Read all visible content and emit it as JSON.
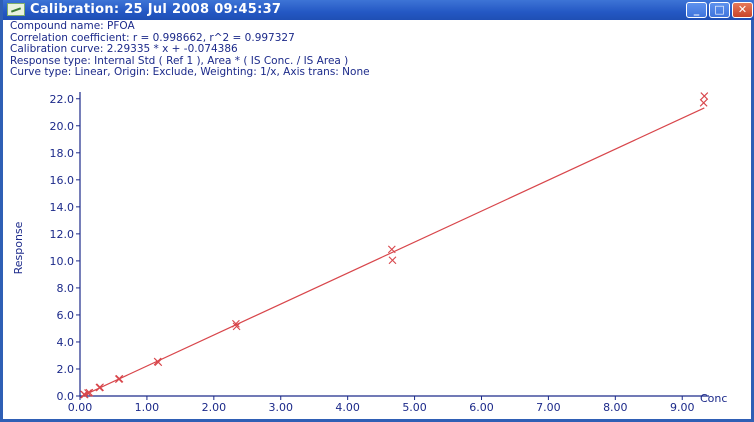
{
  "window": {
    "title": "Calibration: 25 Jul 2008 09:45:37",
    "minimize_symbol": "_",
    "maximize_symbol": "□",
    "close_symbol": "✕"
  },
  "info": {
    "compound": "Compound name: PFOA",
    "correlation": "Correlation coefficient: r = 0.998662, r^2 = 0.997327",
    "curve": "Calibration curve: 2.29335 * x + -0.074386",
    "response": "Response type: Internal Std ( Ref 1 ), Area * ( IS Conc. / IS Area )",
    "curve_type": "Curve type: Linear, Origin: Exclude, Weighting: 1/x, Axis trans: None"
  },
  "chart_data": {
    "type": "scatter",
    "xlabel": "Conc",
    "ylabel": "Response",
    "xlim": [
      0,
      9.4
    ],
    "ylim": [
      0,
      22.5
    ],
    "x_ticks": [
      "0.00",
      "1.00",
      "2.00",
      "3.00",
      "4.00",
      "5.00",
      "6.00",
      "7.00",
      "8.00",
      "9.00"
    ],
    "y_ticks": [
      "0.0",
      "2.0",
      "4.0",
      "6.0",
      "8.0",
      "10.0",
      "12.0",
      "14.0",
      "16.0",
      "18.0",
      "20.0",
      "22.0"
    ],
    "fit_line": {
      "slope": 2.29335,
      "intercept": -0.074386
    },
    "points": [
      {
        "x": 0.06,
        "y": 0.12
      },
      {
        "x": 0.07,
        "y": 0.1
      },
      {
        "x": 0.12,
        "y": 0.22
      },
      {
        "x": 0.14,
        "y": 0.25
      },
      {
        "x": 0.29,
        "y": 0.62
      },
      {
        "x": 0.3,
        "y": 0.65
      },
      {
        "x": 0.58,
        "y": 1.25
      },
      {
        "x": 0.59,
        "y": 1.28
      },
      {
        "x": 1.16,
        "y": 2.55
      },
      {
        "x": 1.17,
        "y": 2.5
      },
      {
        "x": 2.33,
        "y": 5.35
      },
      {
        "x": 2.34,
        "y": 5.15
      },
      {
        "x": 4.66,
        "y": 10.85
      },
      {
        "x": 4.67,
        "y": 10.05
      },
      {
        "x": 9.32,
        "y": 21.7
      },
      {
        "x": 9.33,
        "y": 22.2
      }
    ],
    "marker": "x",
    "color": "#d8464b",
    "axis_color": "#1c2a8a"
  }
}
